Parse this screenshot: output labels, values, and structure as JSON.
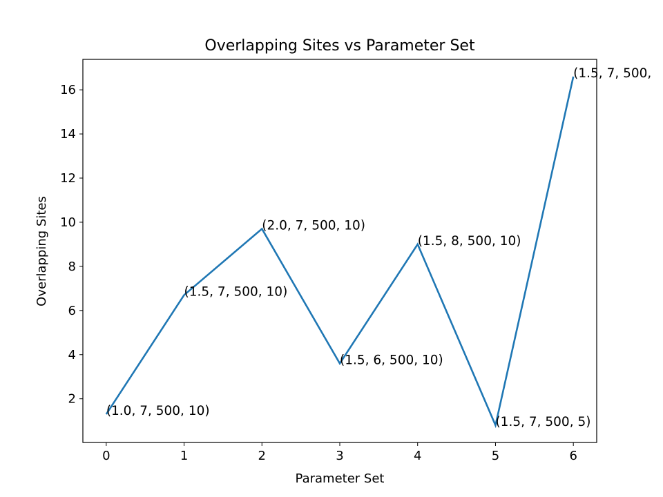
{
  "chart_data": {
    "type": "line",
    "title": "Overlapping Sites vs Parameter Set",
    "xlabel": "Parameter Set",
    "ylabel": "Overlapping Sites",
    "x": [
      0,
      1,
      2,
      3,
      4,
      5,
      6
    ],
    "series": [
      {
        "values": [
          1.3,
          6.7,
          9.7,
          3.6,
          9.0,
          0.8,
          16.6
        ],
        "color": "#1f77b4"
      }
    ],
    "point_labels": [
      "(1.0, 7, 500, 10)",
      "(1.5, 7, 500, 10)",
      "(2.0, 7, 500, 10)",
      "(1.5, 6, 500, 10)",
      "(1.5, 8, 500, 10)",
      "(1.5, 7, 500, 5)",
      "(1.5, 7, 500,"
    ],
    "xlim": [
      -0.3,
      6.3
    ],
    "ylim": [
      0.02,
      17.38
    ],
    "xticks": [
      0,
      1,
      2,
      3,
      4,
      5,
      6
    ],
    "yticks": [
      2,
      4,
      6,
      8,
      10,
      12,
      14,
      16
    ],
    "grid": false,
    "legend": "none"
  }
}
